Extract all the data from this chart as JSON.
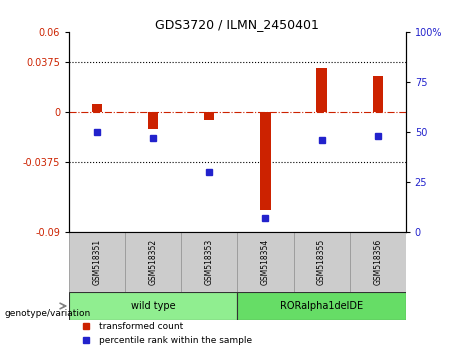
{
  "title": "GDS3720 / ILMN_2450401",
  "samples": [
    "GSM518351",
    "GSM518352",
    "GSM518353",
    "GSM518354",
    "GSM518355",
    "GSM518356"
  ],
  "red_values": [
    0.006,
    -0.013,
    -0.006,
    -0.073,
    0.033,
    0.027
  ],
  "blue_values_pct": [
    50,
    47,
    30,
    7,
    46,
    48
  ],
  "ylim_left": [
    -0.09,
    0.06
  ],
  "ylim_right": [
    0,
    100
  ],
  "yticks_left": [
    -0.09,
    -0.0375,
    0,
    0.0375,
    0.06
  ],
  "yticks_right": [
    0,
    25,
    50,
    75,
    100
  ],
  "ytick_labels_left": [
    "-0.09",
    "-0.0375",
    "0",
    "0.0375",
    "0.06"
  ],
  "ytick_labels_right": [
    "0",
    "25",
    "50",
    "75",
    "100%"
  ],
  "hlines": [
    -0.0375,
    0.0375
  ],
  "groups": [
    {
      "label": "wild type",
      "samples": [
        0,
        1,
        2
      ],
      "color": "#90EE90"
    },
    {
      "label": "RORalpha1delDE",
      "samples": [
        3,
        4,
        5
      ],
      "color": "#66DD66"
    }
  ],
  "group_row_label": "genotype/variation",
  "red_color": "#CC2200",
  "blue_color": "#2222CC",
  "bar_width": 0.18,
  "legend_red": "transformed count",
  "legend_blue": "percentile rank within the sample",
  "sample_box_color": "#CCCCCC",
  "sample_border_color": "#999999",
  "group_bg_color": "#AAAAAA"
}
